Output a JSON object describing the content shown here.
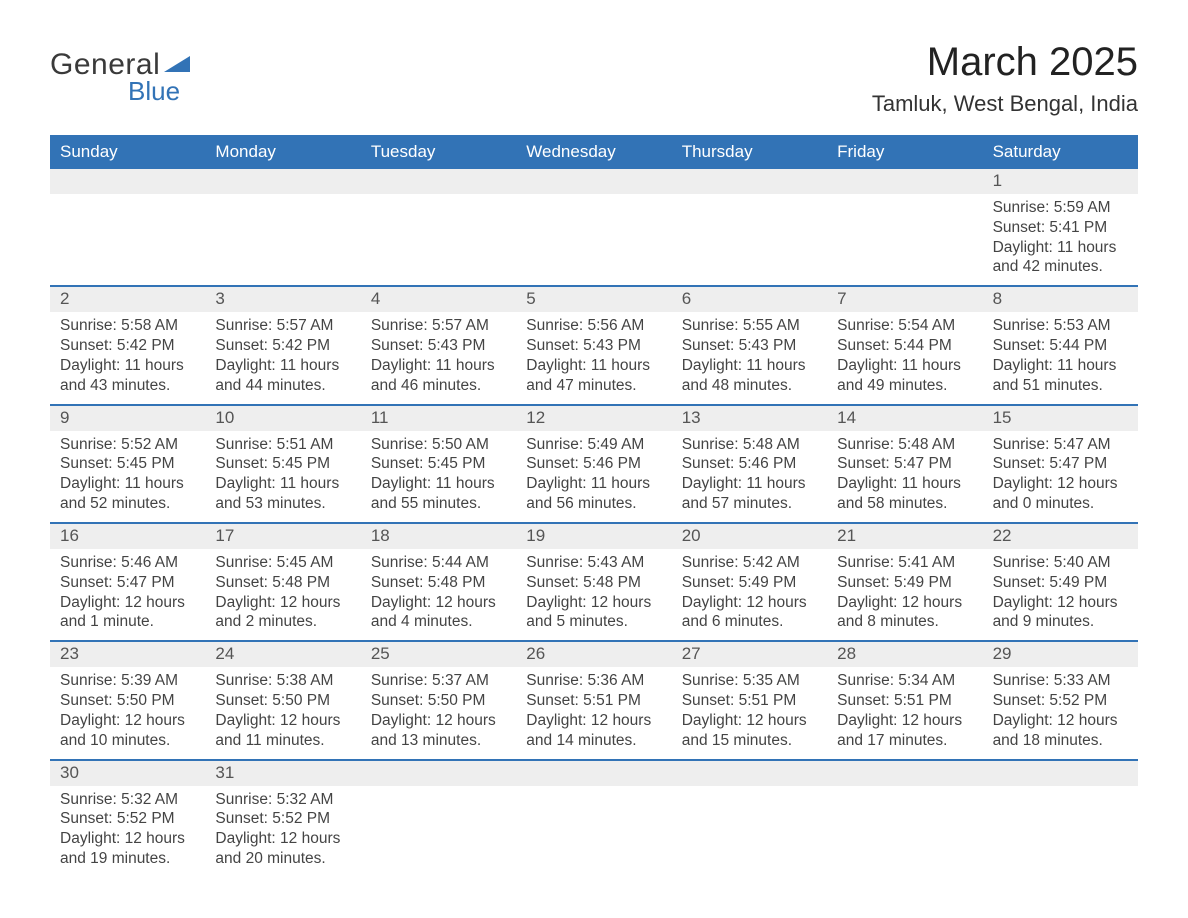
{
  "colors": {
    "header_bg": "#3273b6",
    "header_text": "#ffffff",
    "daynum_bg": "#eeeeee",
    "border": "#3273b6",
    "body_bg": "#ffffff",
    "text": "#444444",
    "logo_gray": "#3a3a3a",
    "logo_blue": "#3273b6"
  },
  "typography": {
    "title_fontsize": 40,
    "location_fontsize": 22,
    "weekday_fontsize": 17,
    "daynum_fontsize": 17,
    "body_fontsize": 15.5
  },
  "logo": {
    "text_general": "General",
    "text_blue": "Blue"
  },
  "title": "March 2025",
  "location": "Tamluk, West Bengal, India",
  "weekdays": [
    "Sunday",
    "Monday",
    "Tuesday",
    "Wednesday",
    "Thursday",
    "Friday",
    "Saturday"
  ],
  "labels": {
    "sunrise": "Sunrise:",
    "sunset": "Sunset:",
    "daylight": "Daylight:"
  },
  "weeks": [
    [
      null,
      null,
      null,
      null,
      null,
      null,
      {
        "n": "1",
        "sunrise": "5:59 AM",
        "sunset": "5:41 PM",
        "daylight": "11 hours and 42 minutes."
      }
    ],
    [
      {
        "n": "2",
        "sunrise": "5:58 AM",
        "sunset": "5:42 PM",
        "daylight": "11 hours and 43 minutes."
      },
      {
        "n": "3",
        "sunrise": "5:57 AM",
        "sunset": "5:42 PM",
        "daylight": "11 hours and 44 minutes."
      },
      {
        "n": "4",
        "sunrise": "5:57 AM",
        "sunset": "5:43 PM",
        "daylight": "11 hours and 46 minutes."
      },
      {
        "n": "5",
        "sunrise": "5:56 AM",
        "sunset": "5:43 PM",
        "daylight": "11 hours and 47 minutes."
      },
      {
        "n": "6",
        "sunrise": "5:55 AM",
        "sunset": "5:43 PM",
        "daylight": "11 hours and 48 minutes."
      },
      {
        "n": "7",
        "sunrise": "5:54 AM",
        "sunset": "5:44 PM",
        "daylight": "11 hours and 49 minutes."
      },
      {
        "n": "8",
        "sunrise": "5:53 AM",
        "sunset": "5:44 PM",
        "daylight": "11 hours and 51 minutes."
      }
    ],
    [
      {
        "n": "9",
        "sunrise": "5:52 AM",
        "sunset": "5:45 PM",
        "daylight": "11 hours and 52 minutes."
      },
      {
        "n": "10",
        "sunrise": "5:51 AM",
        "sunset": "5:45 PM",
        "daylight": "11 hours and 53 minutes."
      },
      {
        "n": "11",
        "sunrise": "5:50 AM",
        "sunset": "5:45 PM",
        "daylight": "11 hours and 55 minutes."
      },
      {
        "n": "12",
        "sunrise": "5:49 AM",
        "sunset": "5:46 PM",
        "daylight": "11 hours and 56 minutes."
      },
      {
        "n": "13",
        "sunrise": "5:48 AM",
        "sunset": "5:46 PM",
        "daylight": "11 hours and 57 minutes."
      },
      {
        "n": "14",
        "sunrise": "5:48 AM",
        "sunset": "5:47 PM",
        "daylight": "11 hours and 58 minutes."
      },
      {
        "n": "15",
        "sunrise": "5:47 AM",
        "sunset": "5:47 PM",
        "daylight": "12 hours and 0 minutes."
      }
    ],
    [
      {
        "n": "16",
        "sunrise": "5:46 AM",
        "sunset": "5:47 PM",
        "daylight": "12 hours and 1 minute."
      },
      {
        "n": "17",
        "sunrise": "5:45 AM",
        "sunset": "5:48 PM",
        "daylight": "12 hours and 2 minutes."
      },
      {
        "n": "18",
        "sunrise": "5:44 AM",
        "sunset": "5:48 PM",
        "daylight": "12 hours and 4 minutes."
      },
      {
        "n": "19",
        "sunrise": "5:43 AM",
        "sunset": "5:48 PM",
        "daylight": "12 hours and 5 minutes."
      },
      {
        "n": "20",
        "sunrise": "5:42 AM",
        "sunset": "5:49 PM",
        "daylight": "12 hours and 6 minutes."
      },
      {
        "n": "21",
        "sunrise": "5:41 AM",
        "sunset": "5:49 PM",
        "daylight": "12 hours and 8 minutes."
      },
      {
        "n": "22",
        "sunrise": "5:40 AM",
        "sunset": "5:49 PM",
        "daylight": "12 hours and 9 minutes."
      }
    ],
    [
      {
        "n": "23",
        "sunrise": "5:39 AM",
        "sunset": "5:50 PM",
        "daylight": "12 hours and 10 minutes."
      },
      {
        "n": "24",
        "sunrise": "5:38 AM",
        "sunset": "5:50 PM",
        "daylight": "12 hours and 11 minutes."
      },
      {
        "n": "25",
        "sunrise": "5:37 AM",
        "sunset": "5:50 PM",
        "daylight": "12 hours and 13 minutes."
      },
      {
        "n": "26",
        "sunrise": "5:36 AM",
        "sunset": "5:51 PM",
        "daylight": "12 hours and 14 minutes."
      },
      {
        "n": "27",
        "sunrise": "5:35 AM",
        "sunset": "5:51 PM",
        "daylight": "12 hours and 15 minutes."
      },
      {
        "n": "28",
        "sunrise": "5:34 AM",
        "sunset": "5:51 PM",
        "daylight": "12 hours and 17 minutes."
      },
      {
        "n": "29",
        "sunrise": "5:33 AM",
        "sunset": "5:52 PM",
        "daylight": "12 hours and 18 minutes."
      }
    ],
    [
      {
        "n": "30",
        "sunrise": "5:32 AM",
        "sunset": "5:52 PM",
        "daylight": "12 hours and 19 minutes."
      },
      {
        "n": "31",
        "sunrise": "5:32 AM",
        "sunset": "5:52 PM",
        "daylight": "12 hours and 20 minutes."
      },
      null,
      null,
      null,
      null,
      null
    ]
  ]
}
